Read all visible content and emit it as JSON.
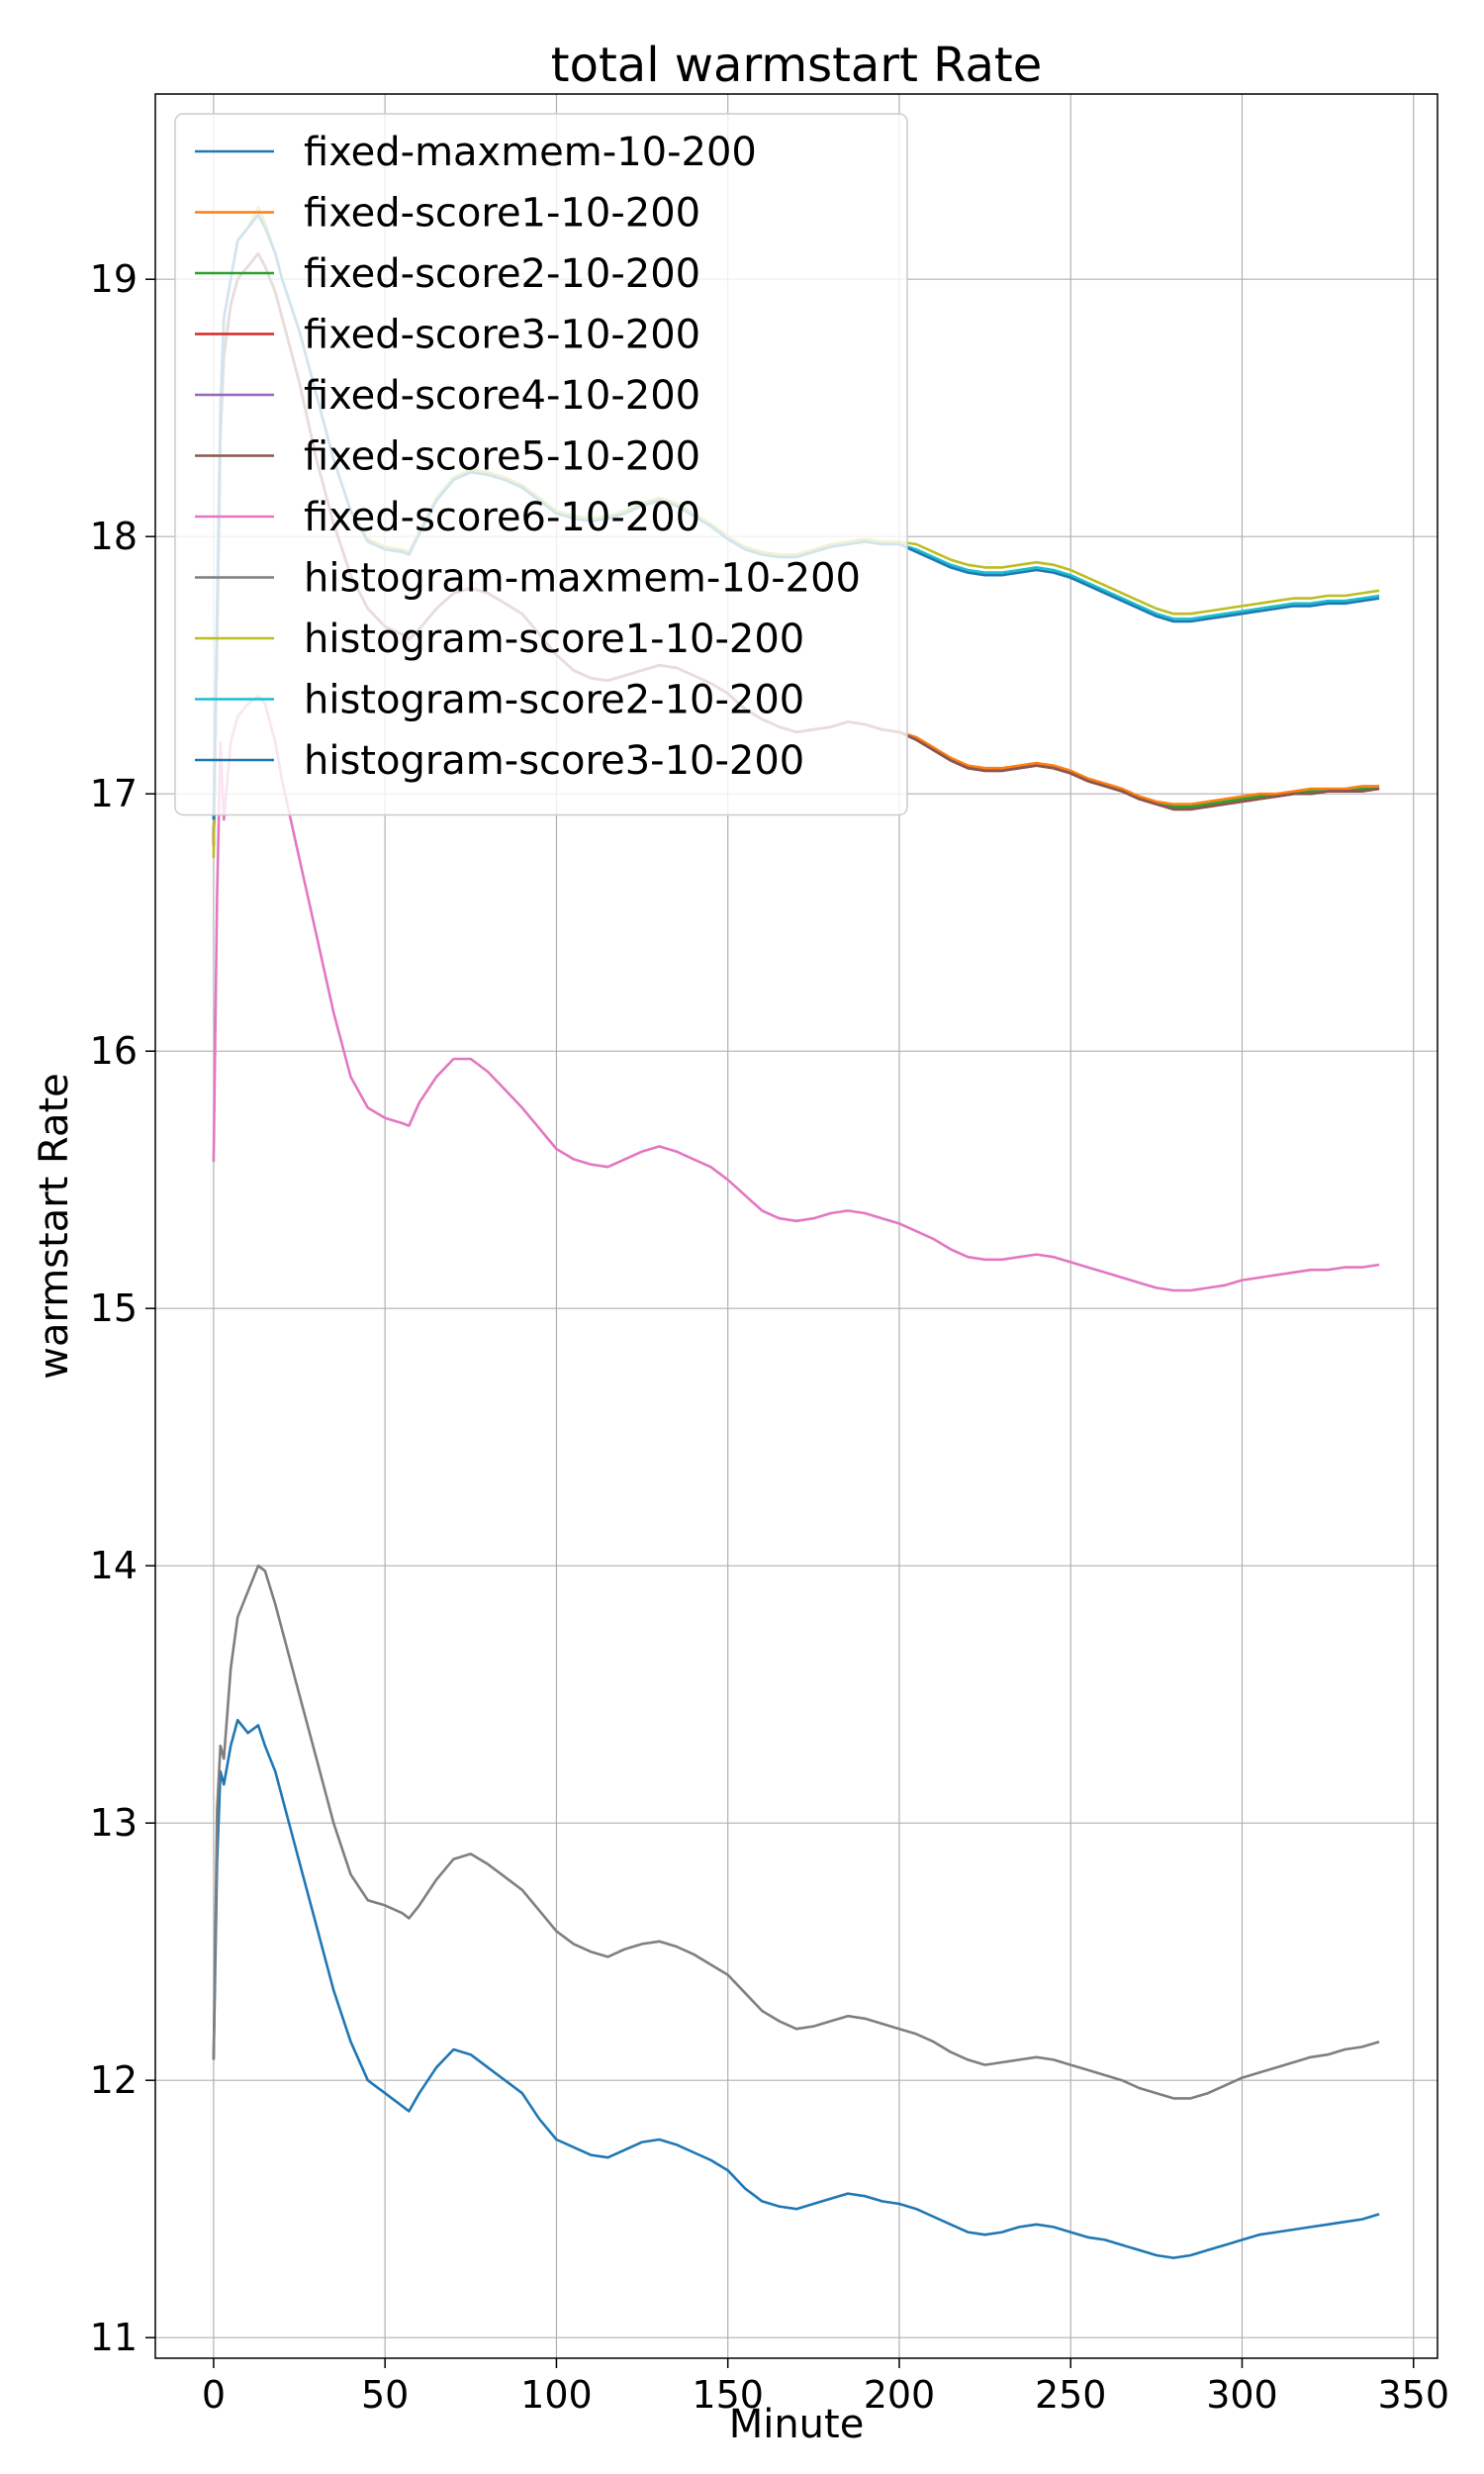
{
  "chart_data": {
    "type": "line",
    "title": "total warmstart Rate",
    "xlabel": "Minute",
    "ylabel": "warmstart Rate",
    "xlim": [
      -17,
      357
    ],
    "ylim": [
      10.92,
      19.72
    ],
    "xticks": [
      0,
      50,
      100,
      150,
      200,
      250,
      300,
      350
    ],
    "yticks": [
      11,
      12,
      13,
      14,
      15,
      16,
      17,
      18,
      19
    ],
    "grid": true,
    "legend_position": "top-left",
    "x": [
      0,
      1,
      2,
      3,
      5,
      7,
      10,
      13,
      15,
      18,
      20,
      25,
      30,
      35,
      40,
      45,
      50,
      55,
      57,
      60,
      65,
      70,
      75,
      80,
      85,
      90,
      95,
      100,
      105,
      110,
      115,
      120,
      125,
      130,
      135,
      140,
      145,
      150,
      155,
      160,
      165,
      170,
      175,
      180,
      185,
      190,
      195,
      200,
      205,
      210,
      215,
      220,
      225,
      230,
      235,
      240,
      245,
      250,
      255,
      260,
      265,
      270,
      275,
      280,
      285,
      290,
      295,
      300,
      305,
      310,
      315,
      320,
      325,
      330,
      335,
      340
    ],
    "series": [
      {
        "name": "fixed-maxmem-10-200",
        "color": "#1f77b4",
        "values": [
          12.08,
          12.85,
          13.2,
          13.15,
          13.3,
          13.4,
          13.35,
          13.38,
          13.3,
          13.2,
          13.1,
          12.85,
          12.6,
          12.35,
          12.15,
          12.0,
          11.95,
          11.9,
          11.88,
          11.95,
          12.05,
          12.12,
          12.1,
          12.05,
          12.0,
          11.95,
          11.85,
          11.77,
          11.74,
          11.71,
          11.7,
          11.73,
          11.76,
          11.77,
          11.75,
          11.72,
          11.69,
          11.65,
          11.58,
          11.53,
          11.51,
          11.5,
          11.52,
          11.54,
          11.56,
          11.55,
          11.53,
          11.52,
          11.5,
          11.47,
          11.44,
          11.41,
          11.4,
          11.41,
          11.43,
          11.44,
          11.43,
          11.41,
          11.39,
          11.38,
          11.36,
          11.34,
          11.32,
          11.31,
          11.32,
          11.34,
          11.36,
          11.38,
          11.4,
          11.41,
          11.42,
          11.43,
          11.44,
          11.45,
          11.46,
          11.48
        ]
      },
      {
        "name": "fixed-score1-10-200",
        "color": "#ff7f0e",
        "values": [
          16.8,
          17.6,
          18.4,
          18.7,
          18.9,
          19.0,
          19.05,
          19.1,
          19.05,
          18.95,
          18.85,
          18.6,
          18.3,
          18.05,
          17.85,
          17.72,
          17.65,
          17.62,
          17.6,
          17.64,
          17.72,
          17.78,
          17.8,
          17.78,
          17.74,
          17.7,
          17.62,
          17.54,
          17.48,
          17.45,
          17.44,
          17.46,
          17.48,
          17.5,
          17.49,
          17.46,
          17.43,
          17.39,
          17.33,
          17.29,
          17.26,
          17.24,
          17.25,
          17.26,
          17.28,
          17.27,
          17.25,
          17.24,
          17.22,
          17.18,
          17.14,
          17.11,
          17.1,
          17.1,
          17.11,
          17.12,
          17.11,
          17.09,
          17.06,
          17.04,
          17.02,
          16.99,
          16.97,
          16.96,
          16.96,
          16.97,
          16.98,
          16.99,
          17.0,
          17.0,
          17.01,
          17.02,
          17.02,
          17.02,
          17.03,
          17.03
        ]
      },
      {
        "name": "fixed-score2-10-200",
        "color": "#2ca02c",
        "values": [
          16.8,
          17.6,
          18.4,
          18.7,
          18.9,
          19.0,
          19.05,
          19.1,
          19.05,
          18.95,
          18.85,
          18.6,
          18.3,
          18.05,
          17.85,
          17.72,
          17.65,
          17.62,
          17.6,
          17.64,
          17.72,
          17.78,
          17.8,
          17.78,
          17.74,
          17.7,
          17.62,
          17.54,
          17.48,
          17.45,
          17.44,
          17.46,
          17.48,
          17.5,
          17.49,
          17.46,
          17.43,
          17.39,
          17.33,
          17.29,
          17.26,
          17.24,
          17.25,
          17.26,
          17.28,
          17.27,
          17.25,
          17.24,
          17.21,
          17.17,
          17.13,
          17.1,
          17.09,
          17.09,
          17.1,
          17.11,
          17.1,
          17.08,
          17.05,
          17.03,
          17.01,
          16.98,
          16.96,
          16.95,
          16.95,
          16.96,
          16.97,
          16.98,
          16.99,
          16.99,
          17.0,
          17.01,
          17.01,
          17.01,
          17.02,
          17.02
        ]
      },
      {
        "name": "fixed-score3-10-200",
        "color": "#d62728",
        "values": [
          16.8,
          17.6,
          18.4,
          18.7,
          18.9,
          19.0,
          19.05,
          19.1,
          19.05,
          18.95,
          18.85,
          18.6,
          18.3,
          18.05,
          17.85,
          17.72,
          17.65,
          17.62,
          17.6,
          17.64,
          17.72,
          17.78,
          17.8,
          17.78,
          17.74,
          17.7,
          17.62,
          17.54,
          17.48,
          17.45,
          17.44,
          17.46,
          17.48,
          17.5,
          17.49,
          17.46,
          17.43,
          17.39,
          17.33,
          17.29,
          17.26,
          17.24,
          17.25,
          17.26,
          17.28,
          17.27,
          17.25,
          17.24,
          17.21,
          17.17,
          17.13,
          17.1,
          17.09,
          17.09,
          17.1,
          17.11,
          17.1,
          17.08,
          17.05,
          17.03,
          17.01,
          16.98,
          16.96,
          16.94,
          16.94,
          16.95,
          16.96,
          16.97,
          16.98,
          16.99,
          17.0,
          17.0,
          17.01,
          17.01,
          17.01,
          17.02
        ]
      },
      {
        "name": "fixed-score4-10-200",
        "color": "#9467bd",
        "values": [
          16.8,
          17.6,
          18.4,
          18.7,
          18.9,
          19.0,
          19.05,
          19.1,
          19.05,
          18.95,
          18.85,
          18.6,
          18.3,
          18.05,
          17.85,
          17.72,
          17.65,
          17.62,
          17.6,
          17.64,
          17.72,
          17.78,
          17.8,
          17.78,
          17.74,
          17.7,
          17.62,
          17.54,
          17.48,
          17.45,
          17.44,
          17.46,
          17.48,
          17.5,
          17.49,
          17.46,
          17.43,
          17.39,
          17.33,
          17.29,
          17.26,
          17.24,
          17.25,
          17.26,
          17.28,
          17.27,
          17.25,
          17.24,
          17.21,
          17.17,
          17.13,
          17.1,
          17.09,
          17.09,
          17.1,
          17.11,
          17.1,
          17.08,
          17.05,
          17.03,
          17.01,
          16.98,
          16.96,
          16.94,
          16.94,
          16.95,
          16.96,
          16.97,
          16.98,
          16.99,
          17.0,
          17.0,
          17.01,
          17.01,
          17.01,
          17.02
        ]
      },
      {
        "name": "fixed-score5-10-200",
        "color": "#8c564b",
        "values": [
          16.8,
          17.6,
          18.4,
          18.7,
          18.9,
          19.0,
          19.05,
          19.1,
          19.05,
          18.95,
          18.85,
          18.6,
          18.3,
          18.05,
          17.85,
          17.72,
          17.65,
          17.62,
          17.6,
          17.64,
          17.72,
          17.78,
          17.8,
          17.78,
          17.74,
          17.7,
          17.62,
          17.54,
          17.48,
          17.45,
          17.44,
          17.46,
          17.48,
          17.5,
          17.49,
          17.46,
          17.43,
          17.39,
          17.33,
          17.29,
          17.26,
          17.24,
          17.25,
          17.26,
          17.28,
          17.27,
          17.25,
          17.24,
          17.21,
          17.17,
          17.13,
          17.1,
          17.09,
          17.09,
          17.1,
          17.11,
          17.1,
          17.08,
          17.05,
          17.03,
          17.01,
          16.98,
          16.96,
          16.94,
          16.94,
          16.95,
          16.96,
          16.97,
          16.98,
          16.99,
          17.0,
          17.0,
          17.01,
          17.01,
          17.01,
          17.02
        ]
      },
      {
        "name": "fixed-score6-10-200",
        "color": "#e377c2",
        "values": [
          15.57,
          16.6,
          17.2,
          16.9,
          17.2,
          17.3,
          17.35,
          17.38,
          17.35,
          17.2,
          17.05,
          16.75,
          16.45,
          16.15,
          15.9,
          15.78,
          15.74,
          15.72,
          15.71,
          15.8,
          15.9,
          15.97,
          15.97,
          15.92,
          15.85,
          15.78,
          15.7,
          15.62,
          15.58,
          15.56,
          15.55,
          15.58,
          15.61,
          15.63,
          15.61,
          15.58,
          15.55,
          15.5,
          15.44,
          15.38,
          15.35,
          15.34,
          15.35,
          15.37,
          15.38,
          15.37,
          15.35,
          15.33,
          15.3,
          15.27,
          15.23,
          15.2,
          15.19,
          15.19,
          15.2,
          15.21,
          15.2,
          15.18,
          15.16,
          15.14,
          15.12,
          15.1,
          15.08,
          15.07,
          15.07,
          15.08,
          15.09,
          15.11,
          15.12,
          15.13,
          15.14,
          15.15,
          15.15,
          15.16,
          15.16,
          15.17
        ]
      },
      {
        "name": "histogram-maxmem-10-200",
        "color": "#7f7f7f",
        "values": [
          12.08,
          13.05,
          13.3,
          13.25,
          13.6,
          13.8,
          13.9,
          14.0,
          13.98,
          13.85,
          13.75,
          13.5,
          13.25,
          13.0,
          12.8,
          12.7,
          12.68,
          12.65,
          12.63,
          12.68,
          12.78,
          12.86,
          12.88,
          12.84,
          12.79,
          12.74,
          12.66,
          12.58,
          12.53,
          12.5,
          12.48,
          12.51,
          12.53,
          12.54,
          12.52,
          12.49,
          12.45,
          12.41,
          12.34,
          12.27,
          12.23,
          12.2,
          12.21,
          12.23,
          12.25,
          12.24,
          12.22,
          12.2,
          12.18,
          12.15,
          12.11,
          12.08,
          12.06,
          12.07,
          12.08,
          12.09,
          12.08,
          12.06,
          12.04,
          12.02,
          12.0,
          11.97,
          11.95,
          11.93,
          11.93,
          11.95,
          11.98,
          12.01,
          12.03,
          12.05,
          12.07,
          12.09,
          12.1,
          12.12,
          12.13,
          12.15
        ]
      },
      {
        "name": "histogram-score1-10-200",
        "color": "#bcbd22",
        "values": [
          16.75,
          17.7,
          18.5,
          18.85,
          19.0,
          19.15,
          19.2,
          19.28,
          19.22,
          19.1,
          19.0,
          18.8,
          18.55,
          18.3,
          18.1,
          17.99,
          17.96,
          17.95,
          17.94,
          18.02,
          18.15,
          18.23,
          18.26,
          18.25,
          18.23,
          18.2,
          18.15,
          18.1,
          18.08,
          18.07,
          18.08,
          18.1,
          18.13,
          18.15,
          18.13,
          18.09,
          18.05,
          18.0,
          17.96,
          17.94,
          17.93,
          17.93,
          17.95,
          17.97,
          17.98,
          17.99,
          17.98,
          17.98,
          17.97,
          17.94,
          17.91,
          17.89,
          17.88,
          17.88,
          17.89,
          17.9,
          17.89,
          17.87,
          17.84,
          17.81,
          17.78,
          17.75,
          17.72,
          17.7,
          17.7,
          17.71,
          17.72,
          17.73,
          17.74,
          17.75,
          17.76,
          17.76,
          17.77,
          17.77,
          17.78,
          17.79
        ]
      },
      {
        "name": "histogram-score2-10-200",
        "color": "#17becf",
        "values": [
          16.9,
          17.7,
          18.5,
          18.85,
          19.0,
          19.15,
          19.2,
          19.25,
          19.2,
          19.1,
          19.0,
          18.8,
          18.55,
          18.3,
          18.1,
          17.98,
          17.95,
          17.94,
          17.93,
          18.01,
          18.14,
          18.22,
          18.25,
          18.24,
          18.22,
          18.19,
          18.14,
          18.09,
          18.07,
          18.06,
          18.07,
          18.09,
          18.12,
          18.14,
          18.12,
          18.08,
          18.04,
          17.99,
          17.95,
          17.93,
          17.92,
          17.92,
          17.94,
          17.96,
          17.97,
          17.98,
          17.97,
          17.97,
          17.95,
          17.92,
          17.89,
          17.87,
          17.86,
          17.86,
          17.87,
          17.88,
          17.87,
          17.85,
          17.82,
          17.79,
          17.76,
          17.73,
          17.7,
          17.68,
          17.68,
          17.69,
          17.7,
          17.71,
          17.72,
          17.73,
          17.74,
          17.74,
          17.75,
          17.75,
          17.76,
          17.77
        ]
      },
      {
        "name": "histogram-score3-10-200",
        "color": "#1f77b4",
        "values": [
          16.9,
          17.7,
          18.5,
          18.85,
          19.0,
          19.15,
          19.2,
          19.25,
          19.2,
          19.1,
          19.0,
          18.8,
          18.55,
          18.3,
          18.1,
          17.98,
          17.95,
          17.94,
          17.93,
          18.01,
          18.14,
          18.22,
          18.25,
          18.24,
          18.22,
          18.19,
          18.14,
          18.09,
          18.07,
          18.06,
          18.07,
          18.09,
          18.12,
          18.14,
          18.12,
          18.08,
          18.04,
          17.99,
          17.95,
          17.93,
          17.92,
          17.92,
          17.94,
          17.96,
          17.97,
          17.98,
          17.97,
          17.97,
          17.94,
          17.91,
          17.88,
          17.86,
          17.85,
          17.85,
          17.86,
          17.87,
          17.86,
          17.84,
          17.81,
          17.78,
          17.75,
          17.72,
          17.69,
          17.67,
          17.67,
          17.68,
          17.69,
          17.7,
          17.71,
          17.72,
          17.73,
          17.73,
          17.74,
          17.74,
          17.75,
          17.76
        ]
      }
    ]
  }
}
